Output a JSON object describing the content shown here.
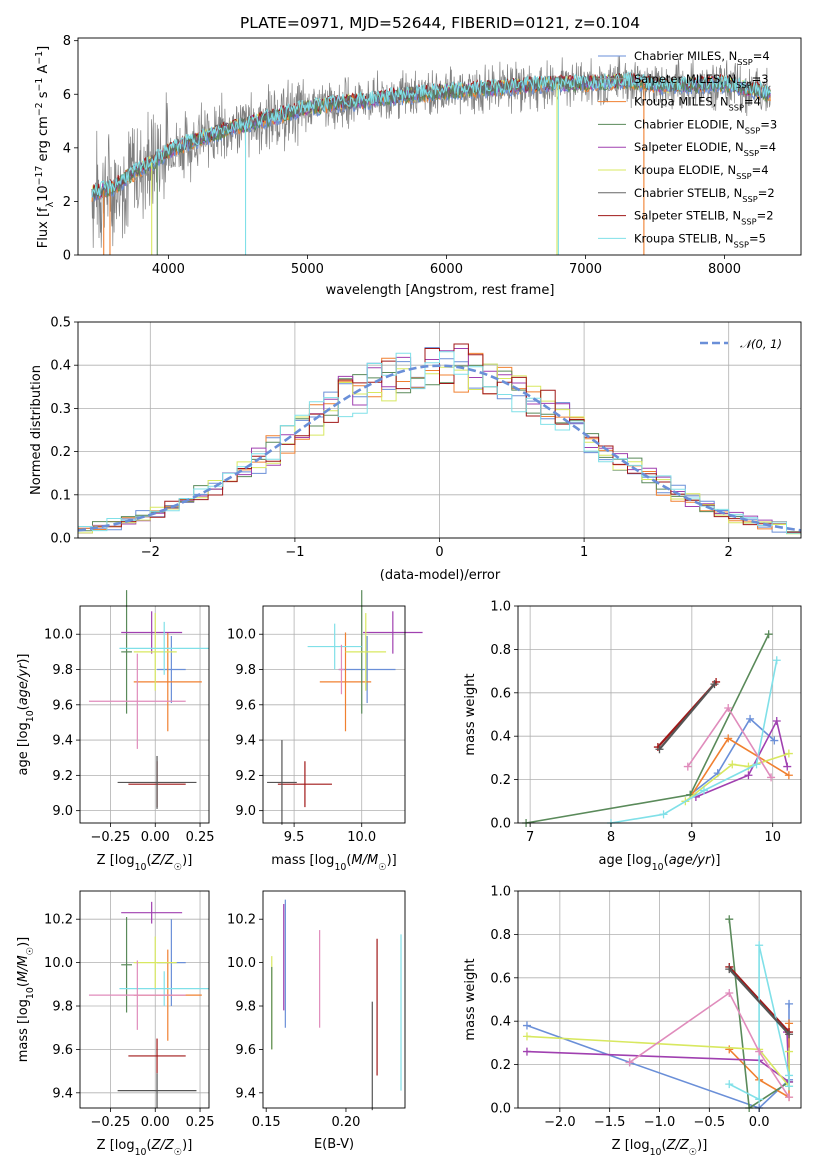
{
  "title": "PLATE=0971, MJD=52644, FIBERID=0121, z=0.104",
  "colors": {
    "series": [
      "#6a8fd8",
      "#999999",
      "#f08030",
      "#5a8a5a",
      "#a040b0",
      "#d8e860",
      "#666666",
      "#a01818",
      "#80e0e8"
    ],
    "pdf_series": [
      "#6a8fd8",
      "#f08030",
      "#5a8a5a",
      "#a040b0",
      "#d8e860",
      "#a01818",
      "#80e0e8"
    ],
    "cross": [
      "#6a8fd8",
      "#f08030",
      "#5a8a5a",
      "#a040b0",
      "#d8e860",
      "#a01818",
      "#80e0e8",
      "#e08cbc",
      "#555555"
    ],
    "normal_curve": "#6a8fd8",
    "grid": "#b0b0b0"
  },
  "chart_data": [
    {
      "id": "spectrum",
      "type": "line",
      "xlabel": "wavelength [Angstrom, rest frame]",
      "ylabel": "Flux [f_λ 10^-17 erg cm^-2 s^-1 A^-1]",
      "xlim": [
        3350,
        8550
      ],
      "ylim": [
        0,
        8.1
      ],
      "xticks": [
        "4000",
        "5000",
        "6000",
        "7000",
        "8000"
      ],
      "yticks": [
        "0",
        "2",
        "4",
        "6",
        "8"
      ],
      "grid": false,
      "legend_position": "right",
      "data_range": [
        3450,
        8330
      ],
      "continuum": {
        "x": [
          3450,
          3600,
          3700,
          3800,
          3900,
          4000,
          4200,
          4500,
          4800,
          5000,
          5300,
          5600,
          6000,
          6300,
          6500,
          6800,
          7000,
          7300,
          7600,
          8000,
          8330
        ],
        "y": [
          2.3,
          2.5,
          2.9,
          3.2,
          3.5,
          3.9,
          4.3,
          4.8,
          5.2,
          5.5,
          5.7,
          5.9,
          6.1,
          6.2,
          6.3,
          6.4,
          6.4,
          6.5,
          6.3,
          6.4,
          6.0
        ]
      },
      "series": [
        {
          "name": "Chabrier MILES",
          "n_ssp": "4"
        },
        {
          "name": "Salpeter MILES",
          "n_ssp": "3"
        },
        {
          "name": "Kroupa MILES",
          "n_ssp": "4"
        },
        {
          "name": "Chabrier ELODIE",
          "n_ssp": "3"
        },
        {
          "name": "Salpeter ELODIE",
          "n_ssp": "4"
        },
        {
          "name": "Kroupa ELODIE",
          "n_ssp": "4"
        },
        {
          "name": "Chabrier STELIB",
          "n_ssp": "2"
        },
        {
          "name": "Salpeter STELIB",
          "n_ssp": "2"
        },
        {
          "name": "Kroupa STELIB",
          "n_ssp": "5"
        }
      ],
      "dips": [
        {
          "x": 3535,
          "series": 2
        },
        {
          "x": 3580,
          "series": 2
        },
        {
          "x": 3880,
          "series": 5
        },
        {
          "x": 3920,
          "series": 3
        },
        {
          "x": 4555,
          "series": 8
        },
        {
          "x": 6795,
          "series": 5
        },
        {
          "x": 6805,
          "series": 8
        },
        {
          "x": 7420,
          "series": 2
        }
      ]
    },
    {
      "id": "residuals",
      "type": "step",
      "xlabel": "(data-model)/error",
      "ylabel": "Normed distribution",
      "xlim": [
        -2.5,
        2.5
      ],
      "ylim": [
        0,
        0.5
      ],
      "xticks": [
        "−2",
        "−1",
        "0",
        "1",
        "2"
      ],
      "yticks": [
        "0.0",
        "0.1",
        "0.2",
        "0.3",
        "0.4",
        "0.5"
      ],
      "grid": true,
      "bin_width": 0.1,
      "legend": "𝒩(0, 1)",
      "legend_position": "top-right"
    },
    {
      "id": "age_vs_Z",
      "type": "scatter",
      "xlabel": "Z [log₁₀(Z/Z☉)]",
      "ylabel": "age  [log₁₀(age/yr)]",
      "xlim": [
        -0.42,
        0.3
      ],
      "ylim": [
        8.93,
        10.16
      ],
      "xticks": [
        "−0.25",
        "0.00",
        "0.25"
      ],
      "yticks": [
        "9.0",
        "9.2",
        "9.4",
        "9.6",
        "9.8",
        "10.0"
      ],
      "grid": true,
      "points": [
        {
          "x": 0.09,
          "y": 9.8,
          "xerr": 0.08,
          "yerr": 0.19,
          "c": 0
        },
        {
          "x": 0.07,
          "y": 9.73,
          "xerr": 0.19,
          "yerr": 0.28,
          "c": 1
        },
        {
          "x": -0.16,
          "y": 9.9,
          "xerr": 0.03,
          "yerr": 0.35,
          "c": 2
        },
        {
          "x": -0.02,
          "y": 10.01,
          "xerr": 0.17,
          "yerr": 0.12,
          "c": 3
        },
        {
          "x": 0.0,
          "y": 9.9,
          "xerr": 0.12,
          "yerr": 0.22,
          "c": 4
        },
        {
          "x": 0.01,
          "y": 9.15,
          "xerr": 0.16,
          "yerr": 0.13,
          "c": 5
        },
        {
          "x": 0.05,
          "y": 9.92,
          "xerr": 0.25,
          "yerr": 0.15,
          "c": 6
        },
        {
          "x": -0.1,
          "y": 9.62,
          "xerr": 0.27,
          "yerr": 0.27,
          "c": 7
        },
        {
          "x": 0.01,
          "y": 9.16,
          "xerr": 0.22,
          "yerr": 0.15,
          "c": 8
        }
      ]
    },
    {
      "id": "age_vs_mass",
      "type": "scatter",
      "xlabel": "mass [log₁₀(M/M☉)]",
      "ylabel": "",
      "xlim": [
        9.27,
        10.32
      ],
      "ylim": [
        8.93,
        10.16
      ],
      "xticks": [
        "9.5",
        "10.0"
      ],
      "yticks": [
        "9.0",
        "9.2",
        "9.4",
        "9.6",
        "9.8",
        "10.0"
      ],
      "grid": true,
      "points": [
        {
          "x": 10.04,
          "y": 9.8,
          "xerr": 0.21,
          "yerr": 0.19,
          "c": 0
        },
        {
          "x": 9.88,
          "y": 9.73,
          "xerr": 0.19,
          "yerr": 0.28,
          "c": 1
        },
        {
          "x": 10.0,
          "y": 9.9,
          "xerr": 0.01,
          "yerr": 0.35,
          "c": 2
        },
        {
          "x": 10.23,
          "y": 10.01,
          "xerr": 0.22,
          "yerr": 0.12,
          "c": 3
        },
        {
          "x": 10.03,
          "y": 9.9,
          "xerr": 0.15,
          "yerr": 0.22,
          "c": 4
        },
        {
          "x": 9.58,
          "y": 9.15,
          "xerr": 0.2,
          "yerr": 0.13,
          "c": 5
        },
        {
          "x": 9.8,
          "y": 9.93,
          "xerr": 0.2,
          "yerr": 0.13,
          "c": 6
        },
        {
          "x": 9.85,
          "y": 9.8,
          "xerr": 0.02,
          "yerr": 0.14,
          "c": 7
        },
        {
          "x": 9.41,
          "y": 9.16,
          "xerr": 0.11,
          "yerr": 0.24,
          "c": 8
        }
      ]
    },
    {
      "id": "weight_vs_age",
      "type": "line",
      "xlabel": "age  [log₁₀(age/yr)]",
      "ylabel": "mass weight",
      "xlim": [
        6.85,
        10.35
      ],
      "ylim": [
        0,
        1
      ],
      "xticks": [
        "7",
        "8",
        "9",
        "10"
      ],
      "yticks": [
        "0.0",
        "0.2",
        "0.4",
        "0.6",
        "0.8",
        "1.0"
      ],
      "grid": true,
      "series": [
        {
          "c": 0,
          "x": [
            8.98,
            9.32,
            9.72,
            10.02
          ],
          "y": [
            0.13,
            0.23,
            0.48,
            0.38
          ]
        },
        {
          "c": 1,
          "x": [
            9.0,
            9.45,
            10.2
          ],
          "y": [
            0.13,
            0.39,
            0.22
          ]
        },
        {
          "c": 2,
          "x": [
            6.95,
            8.98,
            9.95
          ],
          "y": [
            0.0,
            0.13,
            0.87
          ]
        },
        {
          "c": 3,
          "x": [
            9.05,
            9.7,
            10.05,
            10.18
          ],
          "y": [
            0.12,
            0.22,
            0.47,
            0.26
          ]
        },
        {
          "c": 4,
          "x": [
            8.92,
            9.5,
            9.7,
            10.2
          ],
          "y": [
            0.1,
            0.27,
            0.26,
            0.32
          ]
        },
        {
          "c": 5,
          "x": [
            8.58,
            9.3
          ],
          "y": [
            0.35,
            0.65
          ]
        },
        {
          "c": 6,
          "x": [
            8.0,
            8.65,
            9.15,
            9.8,
            10.05
          ],
          "y": [
            0.0,
            0.04,
            0.15,
            0.27,
            0.75
          ]
        },
        {
          "c": 7,
          "x": [
            8.95,
            9.45,
            9.98
          ],
          "y": [
            0.26,
            0.53,
            0.21
          ]
        },
        {
          "c": 8,
          "x": [
            8.6,
            9.28
          ],
          "y": [
            0.34,
            0.64
          ]
        }
      ]
    },
    {
      "id": "mass_vs_Z",
      "type": "scatter",
      "xlabel": "Z [log₁₀(Z/Z☉)]",
      "ylabel": "mass [log₁₀(M/M☉)]",
      "xlim": [
        -0.42,
        0.3
      ],
      "ylim": [
        9.33,
        10.33
      ],
      "xticks": [
        "−0.25",
        "0.00",
        "0.25"
      ],
      "yticks": [
        "9.4",
        "9.6",
        "9.8",
        "10.0",
        "10.2"
      ],
      "grid": true,
      "points": [
        {
          "x": 0.09,
          "y": 10.0,
          "xerr": 0.08,
          "yerr": 0.2,
          "c": 0
        },
        {
          "x": 0.07,
          "y": 9.85,
          "xerr": 0.19,
          "yerr": 0.21,
          "c": 1
        },
        {
          "x": -0.16,
          "y": 9.99,
          "xerr": 0.03,
          "yerr": 0.22,
          "c": 2
        },
        {
          "x": -0.02,
          "y": 10.23,
          "xerr": 0.17,
          "yerr": 0.05,
          "c": 3
        },
        {
          "x": 0.0,
          "y": 10.0,
          "xerr": 0.12,
          "yerr": 0.12,
          "c": 4
        },
        {
          "x": 0.01,
          "y": 9.57,
          "xerr": 0.16,
          "yerr": 0.08,
          "c": 5
        },
        {
          "x": 0.05,
          "y": 9.88,
          "xerr": 0.25,
          "yerr": 0.08,
          "c": 6
        },
        {
          "x": -0.1,
          "y": 9.85,
          "xerr": 0.27,
          "yerr": 0.16,
          "c": 7
        },
        {
          "x": 0.01,
          "y": 9.41,
          "xerr": 0.22,
          "yerr": 0.08,
          "c": 8
        }
      ]
    },
    {
      "id": "mass_vs_ebv",
      "type": "errorbar",
      "xlabel": "E(B-V)",
      "ylabel": "",
      "xlim": [
        0.148,
        0.237
      ],
      "ylim": [
        9.33,
        10.33
      ],
      "xticks": [
        "0.15",
        "0.20"
      ],
      "yticks": [
        "9.4",
        "9.6",
        "9.8",
        "10.0",
        "10.2"
      ],
      "grid": false,
      "bars": [
        {
          "x": 0.1535,
          "lo": 9.6,
          "hi": 10.03,
          "c": 4
        },
        {
          "x": 0.1535,
          "lo": 9.6,
          "hi": 9.98,
          "c": 2
        },
        {
          "x": 0.161,
          "lo": 9.78,
          "hi": 10.27,
          "c": 3
        },
        {
          "x": 0.162,
          "lo": 9.7,
          "hi": 10.29,
          "c": 0
        },
        {
          "x": 0.1835,
          "lo": 9.7,
          "hi": 10.15,
          "c": 7
        },
        {
          "x": 0.2165,
          "lo": 9.32,
          "hi": 9.82,
          "c": 8
        },
        {
          "x": 0.2195,
          "lo": 9.48,
          "hi": 10.11,
          "c": 5
        },
        {
          "x": 0.2345,
          "lo": 9.41,
          "hi": 10.13,
          "c": 6
        }
      ]
    },
    {
      "id": "weight_vs_Z",
      "type": "line",
      "xlabel": "Z [log₁₀(Z/Z☉)]",
      "ylabel": "mass weight",
      "xlim": [
        -2.42,
        0.42
      ],
      "ylim": [
        0,
        1
      ],
      "xticks": [
        "−2.0",
        "−1.5",
        "−1.0",
        "−0.5",
        "0.0"
      ],
      "yticks": [
        "0.0",
        "0.2",
        "0.4",
        "0.6",
        "0.8",
        "1.0"
      ],
      "grid": true,
      "series": [
        {
          "c": 0,
          "x": [
            -2.33,
            -1.3,
            0.0,
            0.3,
            0.3
          ],
          "y": [
            0.38,
            0.21,
            0.0,
            0.13,
            0.48
          ]
        },
        {
          "c": 1,
          "x": [
            -0.3,
            0.0,
            0.3,
            0.3
          ],
          "y": [
            0.27,
            0.13,
            0.05,
            0.39
          ]
        },
        {
          "c": 2,
          "x": [
            -0.3,
            -0.1,
            0.3
          ],
          "y": [
            0.87,
            0.0,
            0.12
          ]
        },
        {
          "c": 3,
          "x": [
            -2.33,
            0.0,
            0.3,
            0.28
          ],
          "y": [
            0.26,
            0.22,
            0.12,
            0.35
          ]
        },
        {
          "c": 4,
          "x": [
            -2.33,
            0.0,
            0.3,
            0.3
          ],
          "y": [
            0.33,
            0.27,
            0.1,
            0.26
          ]
        },
        {
          "c": 5,
          "x": [
            -0.3,
            0.3
          ],
          "y": [
            0.65,
            0.35
          ]
        },
        {
          "c": 6,
          "x": [
            -0.3,
            0.0,
            0.0,
            0.3,
            0.3
          ],
          "y": [
            0.11,
            0.04,
            0.75,
            0.15,
            0.1
          ]
        },
        {
          "c": 7,
          "x": [
            -1.3,
            -0.3,
            0.0,
            0.3
          ],
          "y": [
            0.21,
            0.53,
            0.26,
            0.05
          ]
        },
        {
          "c": 8,
          "x": [
            -0.3,
            0.3
          ],
          "y": [
            0.64,
            0.34
          ]
        }
      ]
    }
  ]
}
